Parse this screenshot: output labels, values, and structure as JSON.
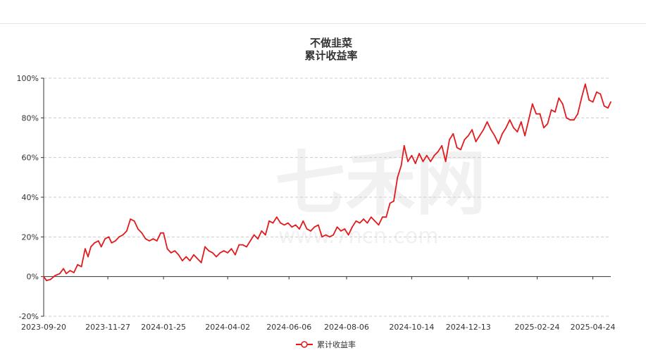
{
  "chart_data": {
    "type": "line",
    "title": "不做韭菜",
    "subtitle": "累计收益率",
    "watermark": {
      "text": "七禾网",
      "url": "www.7hcn.com"
    },
    "x_ticks": [
      "2023-09-20",
      "2023-11-27",
      "2024-01-25",
      "2024-04-02",
      "2024-06-06",
      "2024-08-06",
      "2024-10-14",
      "2024-12-13",
      "2025-02-24",
      "2025-04-24"
    ],
    "y_ticks": [
      "-20%",
      "0%",
      "20%",
      "40%",
      "60%",
      "80%",
      "100%"
    ],
    "ylim": [
      -20,
      100
    ],
    "grid": true,
    "legend": "bottom-center",
    "colors": {
      "line": "#e31a1c",
      "grid": "#cccccc",
      "axis": "#333333"
    },
    "series": [
      {
        "name": "累计收益率",
        "points": [
          [
            "2023-09-20",
            0
          ],
          [
            "2023-09-23",
            -2
          ],
          [
            "2023-09-27",
            -1.5
          ],
          [
            "2023-10-02",
            0.5
          ],
          [
            "2023-10-07",
            1.5
          ],
          [
            "2023-10-11",
            4
          ],
          [
            "2023-10-14",
            1.5
          ],
          [
            "2023-10-18",
            3
          ],
          [
            "2023-10-22",
            2
          ],
          [
            "2023-10-26",
            6
          ],
          [
            "2023-10-30",
            5
          ],
          [
            "2023-11-03",
            14
          ],
          [
            "2023-11-06",
            10
          ],
          [
            "2023-11-09",
            15
          ],
          [
            "2023-11-13",
            17
          ],
          [
            "2023-11-17",
            18
          ],
          [
            "2023-11-20",
            15
          ],
          [
            "2023-11-24",
            19
          ],
          [
            "2023-11-28",
            20
          ],
          [
            "2023-12-01",
            17
          ],
          [
            "2023-12-05",
            18
          ],
          [
            "2023-12-09",
            20
          ],
          [
            "2023-12-13",
            21
          ],
          [
            "2023-12-17",
            23
          ],
          [
            "2023-12-21",
            29
          ],
          [
            "2023-12-25",
            28
          ],
          [
            "2023-12-29",
            24
          ],
          [
            "2024-01-02",
            22
          ],
          [
            "2024-01-06",
            19
          ],
          [
            "2024-01-10",
            18
          ],
          [
            "2024-01-14",
            19
          ],
          [
            "2024-01-18",
            18
          ],
          [
            "2024-01-22",
            22
          ],
          [
            "2024-01-25",
            22
          ],
          [
            "2024-01-29",
            14
          ],
          [
            "2024-02-02",
            12
          ],
          [
            "2024-02-06",
            13
          ],
          [
            "2024-02-10",
            11
          ],
          [
            "2024-02-14",
            8
          ],
          [
            "2024-02-18",
            10
          ],
          [
            "2024-02-22",
            8
          ],
          [
            "2024-02-26",
            11
          ],
          [
            "2024-03-01",
            9
          ],
          [
            "2024-03-05",
            7
          ],
          [
            "2024-03-09",
            15
          ],
          [
            "2024-03-13",
            13
          ],
          [
            "2024-03-17",
            12
          ],
          [
            "2024-03-21",
            10
          ],
          [
            "2024-03-25",
            12
          ],
          [
            "2024-03-29",
            13
          ],
          [
            "2024-04-02",
            12
          ],
          [
            "2024-04-06",
            14
          ],
          [
            "2024-04-10",
            11
          ],
          [
            "2024-04-14",
            16
          ],
          [
            "2024-04-18",
            16
          ],
          [
            "2024-04-22",
            15
          ],
          [
            "2024-04-26",
            18
          ],
          [
            "2024-04-30",
            21
          ],
          [
            "2024-05-04",
            19
          ],
          [
            "2024-05-08",
            23
          ],
          [
            "2024-05-12",
            21
          ],
          [
            "2024-05-16",
            28
          ],
          [
            "2024-05-20",
            27
          ],
          [
            "2024-05-24",
            30
          ],
          [
            "2024-05-28",
            27
          ],
          [
            "2024-06-01",
            26
          ],
          [
            "2024-06-05",
            27
          ],
          [
            "2024-06-09",
            25
          ],
          [
            "2024-06-13",
            26
          ],
          [
            "2024-06-17",
            24
          ],
          [
            "2024-06-21",
            28
          ],
          [
            "2024-06-25",
            24
          ],
          [
            "2024-06-29",
            23
          ],
          [
            "2024-07-03",
            25
          ],
          [
            "2024-07-07",
            26
          ],
          [
            "2024-07-11",
            20
          ],
          [
            "2024-07-15",
            21
          ],
          [
            "2024-07-19",
            20
          ],
          [
            "2024-07-23",
            21
          ],
          [
            "2024-07-27",
            25
          ],
          [
            "2024-07-31",
            23
          ],
          [
            "2024-08-04",
            24
          ],
          [
            "2024-08-08",
            21
          ],
          [
            "2024-08-12",
            25
          ],
          [
            "2024-08-16",
            28
          ],
          [
            "2024-08-20",
            27
          ],
          [
            "2024-08-24",
            29
          ],
          [
            "2024-08-28",
            27
          ],
          [
            "2024-09-01",
            30
          ],
          [
            "2024-09-05",
            28
          ],
          [
            "2024-09-09",
            26
          ],
          [
            "2024-09-13",
            30
          ],
          [
            "2024-09-17",
            30
          ],
          [
            "2024-09-21",
            37
          ],
          [
            "2024-09-25",
            38
          ],
          [
            "2024-09-29",
            50
          ],
          [
            "2024-10-03",
            56
          ],
          [
            "2024-10-06",
            66
          ],
          [
            "2024-10-10",
            58
          ],
          [
            "2024-10-14",
            61
          ],
          [
            "2024-10-18",
            57
          ],
          [
            "2024-10-22",
            62
          ],
          [
            "2024-10-26",
            58
          ],
          [
            "2024-10-30",
            61
          ],
          [
            "2024-11-03",
            58
          ],
          [
            "2024-11-07",
            61
          ],
          [
            "2024-11-11",
            63
          ],
          [
            "2024-11-15",
            66
          ],
          [
            "2024-11-19",
            58
          ],
          [
            "2024-11-23",
            69
          ],
          [
            "2024-11-27",
            72
          ],
          [
            "2024-12-01",
            65
          ],
          [
            "2024-12-05",
            64
          ],
          [
            "2024-12-09",
            69
          ],
          [
            "2024-12-13",
            71
          ],
          [
            "2024-12-17",
            74
          ],
          [
            "2024-12-21",
            68
          ],
          [
            "2024-12-25",
            71
          ],
          [
            "2024-12-29",
            74
          ],
          [
            "2025-01-02",
            78
          ],
          [
            "2025-01-06",
            74
          ],
          [
            "2025-01-10",
            71
          ],
          [
            "2025-01-14",
            67
          ],
          [
            "2025-01-18",
            72
          ],
          [
            "2025-01-22",
            75
          ],
          [
            "2025-01-26",
            79
          ],
          [
            "2025-01-30",
            75
          ],
          [
            "2025-02-03",
            73
          ],
          [
            "2025-02-07",
            78
          ],
          [
            "2025-02-11",
            71
          ],
          [
            "2025-02-15",
            79
          ],
          [
            "2025-02-19",
            87
          ],
          [
            "2025-02-23",
            82
          ],
          [
            "2025-02-27",
            82
          ],
          [
            "2025-03-03",
            75
          ],
          [
            "2025-03-07",
            77
          ],
          [
            "2025-03-11",
            84
          ],
          [
            "2025-03-15",
            83
          ],
          [
            "2025-03-19",
            90
          ],
          [
            "2025-03-23",
            87
          ],
          [
            "2025-03-27",
            80
          ],
          [
            "2025-03-31",
            79
          ],
          [
            "2025-04-04",
            79
          ],
          [
            "2025-04-08",
            82
          ],
          [
            "2025-04-12",
            90
          ],
          [
            "2025-04-16",
            97
          ],
          [
            "2025-04-20",
            89
          ],
          [
            "2025-04-24",
            88
          ],
          [
            "2025-04-28",
            93
          ],
          [
            "2025-05-02",
            92
          ],
          [
            "2025-05-06",
            86
          ],
          [
            "2025-05-10",
            85
          ],
          [
            "2025-05-13",
            88
          ]
        ]
      }
    ]
  }
}
